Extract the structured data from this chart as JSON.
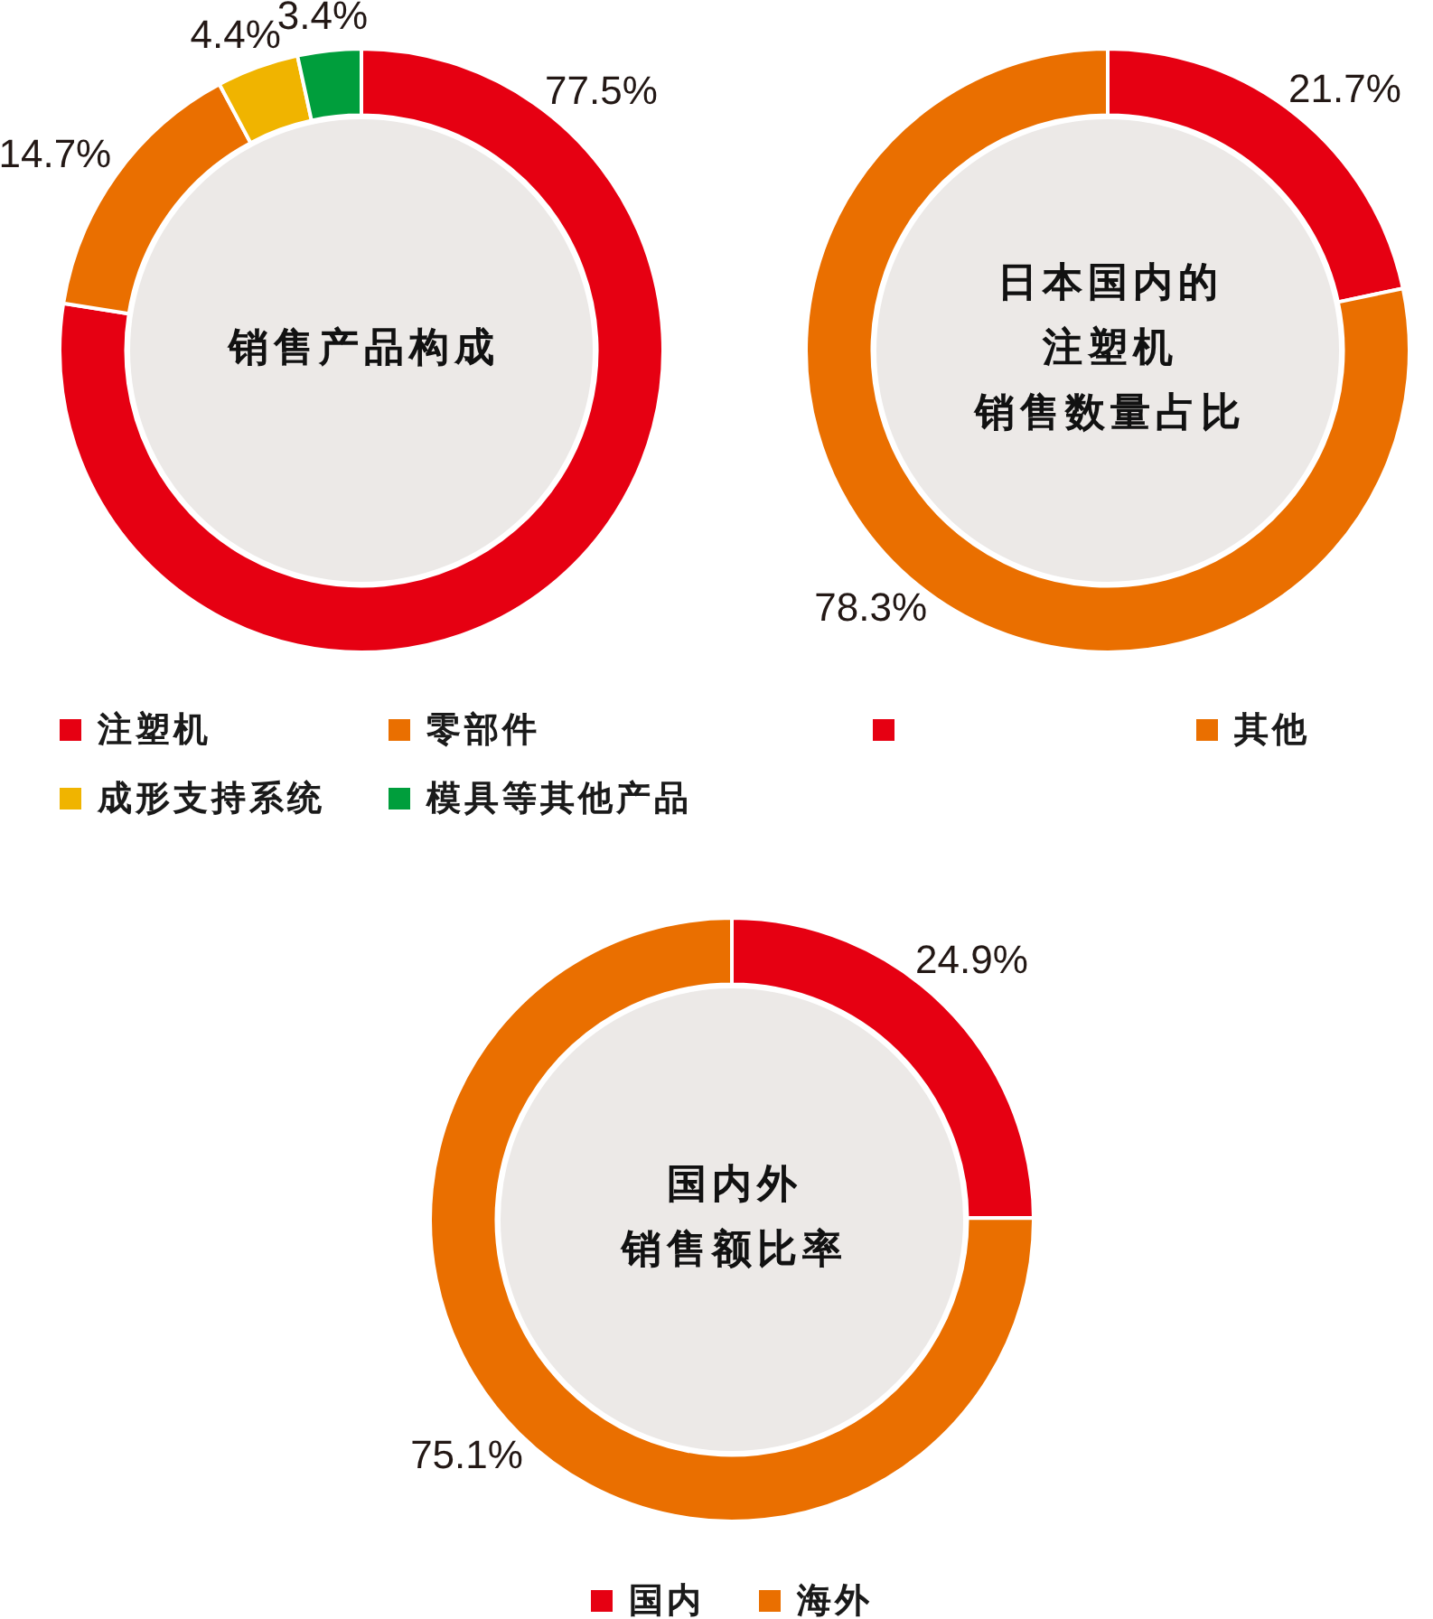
{
  "chart_data": [
    {
      "type": "donut",
      "title": "销售产品构成",
      "categories": [
        "注塑机",
        "零部件",
        "成形支持系统",
        "模具等其他产品"
      ],
      "values": [
        77.5,
        14.7,
        4.4,
        3.4
      ],
      "colors": [
        "#e60012",
        "#ea6f00",
        "#f0b400",
        "#009e3c"
      ],
      "value_labels": [
        "77.5%",
        "14.7%",
        "4.4%",
        "3.4%"
      ],
      "legend": "bottom"
    },
    {
      "type": "donut",
      "title": "日本国内的注塑机销售数量占比",
      "categories": [
        null,
        "其他"
      ],
      "values": [
        21.7,
        78.3
      ],
      "colors": [
        "#e60012",
        "#ea6f00"
      ],
      "value_labels": [
        "21.7%",
        "78.3%"
      ],
      "legend": "bottom"
    },
    {
      "type": "donut",
      "title": "国内外销售额比率",
      "categories": [
        "国内",
        "海外"
      ],
      "values": [
        24.9,
        75.1
      ],
      "colors": [
        "#e60012",
        "#ea6f00"
      ],
      "value_labels": [
        "24.9%",
        "75.1%"
      ],
      "legend": "bottom"
    }
  ]
}
